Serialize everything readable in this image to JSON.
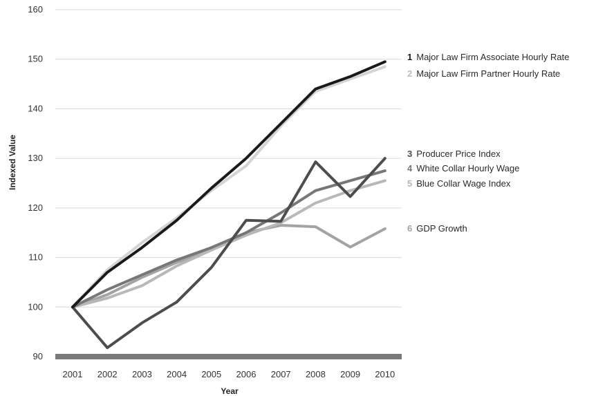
{
  "chart_data": {
    "type": "line",
    "title": "",
    "xlabel": "Year",
    "ylabel": "Indexed Value",
    "ylim": [
      90,
      160
    ],
    "yticks": [
      90,
      100,
      110,
      120,
      130,
      140,
      150,
      160
    ],
    "categories": [
      "2001",
      "2002",
      "2003",
      "2004",
      "2005",
      "2006",
      "2007",
      "2008",
      "2009",
      "2010"
    ],
    "grid": true,
    "legend_position": "right",
    "series": [
      {
        "name": "Major Law Firm Associate Hourly Rate",
        "number": "1",
        "color": "#1a1a1a",
        "values": [
          100,
          107,
          112,
          117.5,
          124,
          130,
          137,
          144,
          146.5,
          149.5
        ]
      },
      {
        "name": "Major Law Firm Partner Hourly Rate",
        "number": "2",
        "color": "#d4d4d4",
        "values": [
          100,
          107.5,
          113,
          118,
          123.5,
          128.5,
          136.5,
          143.5,
          146,
          148.5
        ]
      },
      {
        "name": "Producer Price Index",
        "number": "3",
        "color": "#4d4d4d",
        "values": [
          100,
          91.8,
          96.8,
          101,
          108,
          117.5,
          117.3,
          129.3,
          122.3,
          130
        ]
      },
      {
        "name": "White Collar Hourly Wage",
        "number": "4",
        "color": "#777777",
        "values": [
          100,
          103.5,
          106.5,
          109.5,
          112,
          115,
          119,
          123.5,
          125.5,
          127.5
        ]
      },
      {
        "name": "Blue Collar Wage Index",
        "number": "5",
        "color": "#b8b8b8",
        "values": [
          100,
          101.8,
          104.3,
          108.3,
          111.5,
          114.5,
          117,
          121,
          123.5,
          125.5
        ]
      },
      {
        "name": "GDP Growth",
        "number": "6",
        "color": "#a3a3a3",
        "values": [
          100,
          102.5,
          106,
          109,
          111.5,
          115,
          116.5,
          116.2,
          112.1,
          115.8
        ]
      }
    ]
  }
}
